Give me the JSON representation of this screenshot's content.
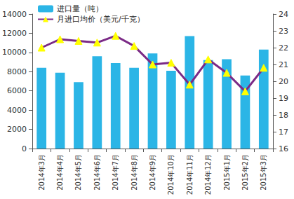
{
  "chart_data": {
    "type": "bar",
    "categories": [
      "2014年3月",
      "2014年4月",
      "2014年5月",
      "2014年6月",
      "2014年7月",
      "2014年8月",
      "2014年9月",
      "2014年10月",
      "2014年11月",
      "2014年12月",
      "2015年1月",
      "2015年2月",
      "2015年3月"
    ],
    "series": [
      {
        "name": "进口量（吨）",
        "type": "bar",
        "color": "#2bb5e6",
        "values": [
          8400,
          7900,
          6900,
          9600,
          8900,
          8400,
          9900,
          8100,
          11700,
          9200,
          9300,
          7600,
          10300
        ]
      },
      {
        "name": "月进口均价（美元/千克）",
        "type": "line",
        "axis": "y2",
        "color": "#7b2a86",
        "marker": "triangle",
        "values": [
          22.0,
          22.5,
          22.4,
          22.3,
          22.7,
          22.1,
          21.0,
          21.1,
          19.8,
          21.3,
          20.5,
          19.4,
          20.8
        ]
      }
    ],
    "ylim": [
      0,
      14000
    ],
    "yticks": [
      0,
      2000,
      4000,
      6000,
      8000,
      10000,
      12000,
      14000
    ],
    "y2lim": [
      16,
      24
    ],
    "y2ticks": [
      16,
      17,
      18,
      19,
      20,
      21,
      22,
      23,
      24
    ],
    "grid": false,
    "legend": "upper left"
  }
}
